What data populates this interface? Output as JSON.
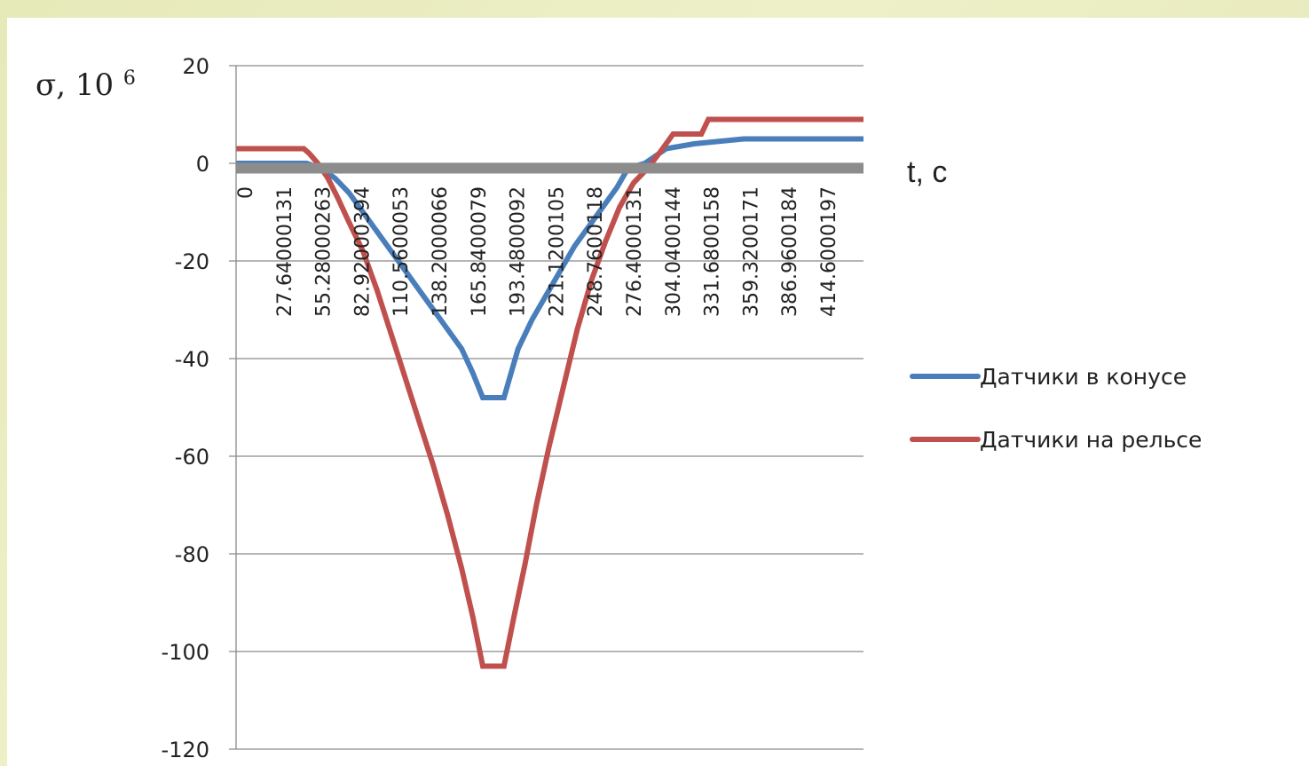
{
  "chart_data": {
    "type": "line",
    "title": "",
    "ylabel": "σ,  10",
    "ylabel_sup": "6",
    "xlabel": "t, c",
    "ylim": [
      -120,
      20
    ],
    "yticks": [
      20,
      0,
      -20,
      -40,
      -60,
      -80,
      -100,
      -120
    ],
    "grid": true,
    "legend_position": "right",
    "x_tick_labels": [
      "0",
      "27.64000131",
      "55.28000263",
      "82.92000394",
      "110.5600053",
      "138.2000066",
      "165.8400079",
      "193.4800092",
      "221.1200105",
      "248.7600118",
      "276.4000131",
      "304.0400144",
      "331.6800158",
      "359.3200171",
      "386.9600184",
      "414.6000197"
    ],
    "xlim": [
      0,
      445
    ],
    "series": [
      {
        "name": "Датчики в конусе",
        "color": "#4a7ebb",
        "points": [
          [
            0,
            0
          ],
          [
            50,
            0
          ],
          [
            60,
            -1
          ],
          [
            70,
            -3
          ],
          [
            80,
            -6
          ],
          [
            90,
            -10
          ],
          [
            100,
            -14
          ],
          [
            110,
            -18
          ],
          [
            120,
            -22
          ],
          [
            130,
            -26
          ],
          [
            140,
            -30
          ],
          [
            150,
            -34
          ],
          [
            160,
            -38
          ],
          [
            168,
            -43
          ],
          [
            175,
            -48
          ],
          [
            190,
            -48
          ],
          [
            195,
            -43
          ],
          [
            200,
            -38
          ],
          [
            210,
            -32
          ],
          [
            220,
            -27
          ],
          [
            230,
            -22
          ],
          [
            240,
            -17
          ],
          [
            250,
            -13
          ],
          [
            260,
            -9
          ],
          [
            270,
            -5
          ],
          [
            278,
            -1
          ],
          [
            290,
            0
          ],
          [
            305,
            3
          ],
          [
            325,
            4
          ],
          [
            360,
            5
          ],
          [
            445,
            5
          ]
        ]
      },
      {
        "name": "Датчики на рельсе",
        "color": "#c0504d",
        "points": [
          [
            0,
            3
          ],
          [
            48,
            3
          ],
          [
            52,
            2
          ],
          [
            58,
            0
          ],
          [
            65,
            -3
          ],
          [
            72,
            -7
          ],
          [
            80,
            -12
          ],
          [
            90,
            -18
          ],
          [
            100,
            -26
          ],
          [
            110,
            -35
          ],
          [
            120,
            -44
          ],
          [
            130,
            -53
          ],
          [
            140,
            -62
          ],
          [
            150,
            -72
          ],
          [
            160,
            -83
          ],
          [
            168,
            -93
          ],
          [
            175,
            -103
          ],
          [
            190,
            -103
          ],
          [
            197,
            -93
          ],
          [
            205,
            -82
          ],
          [
            213,
            -70
          ],
          [
            222,
            -58
          ],
          [
            232,
            -46
          ],
          [
            242,
            -34
          ],
          [
            252,
            -24
          ],
          [
            262,
            -16
          ],
          [
            272,
            -9
          ],
          [
            282,
            -4
          ],
          [
            292,
            -1
          ],
          [
            300,
            2
          ],
          [
            310,
            6
          ],
          [
            330,
            6
          ],
          [
            335,
            9
          ],
          [
            445,
            9
          ]
        ]
      },
      {
        "name": "",
        "color": "#8c8c8c",
        "points": [
          [
            0,
            -1
          ],
          [
            445,
            -1
          ]
        ]
      }
    ]
  }
}
